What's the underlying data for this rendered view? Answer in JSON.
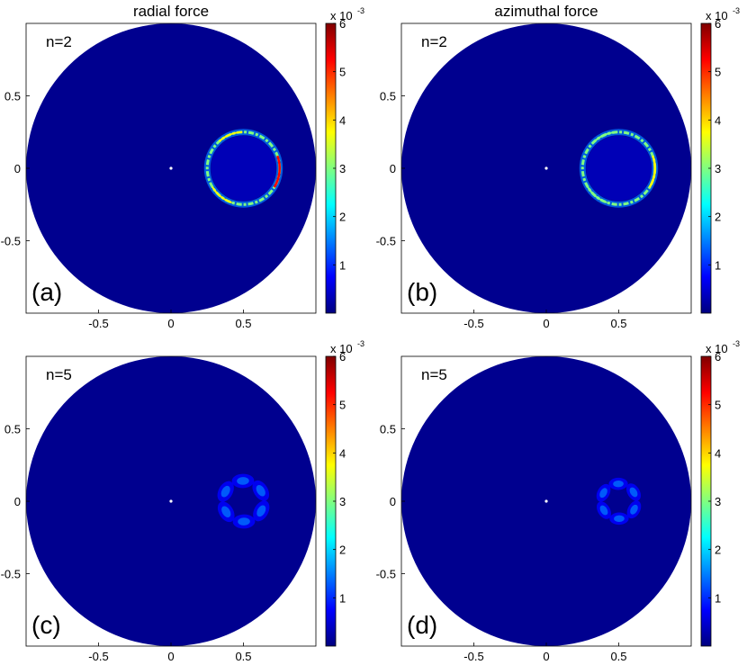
{
  "colors": {
    "field": "#00008f",
    "background": "#ffffff",
    "colormap": [
      "#00007f",
      "#0000ff",
      "#0080ff",
      "#00ffff",
      "#80ff80",
      "#ffff00",
      "#ff8000",
      "#ff0000",
      "#800000"
    ]
  },
  "chart_data": [
    {
      "type": "heatmap",
      "title": "radial force",
      "annotation": "n=2",
      "panel_label": "(a)",
      "xticks": [
        "-0.5",
        "0",
        "0.5"
      ],
      "yticks": [
        "0.5",
        "0",
        "-0.5"
      ],
      "xlim": [
        -1,
        1
      ],
      "ylim": [
        -1,
        1
      ],
      "colorbar": {
        "ticks": [
          "1",
          "2",
          "3",
          "4",
          "5",
          "6"
        ],
        "range": [
          0,
          6
        ],
        "multiplier": "x 10",
        "exponent": "-3"
      },
      "features": [
        {
          "shape": "ring",
          "center": [
            0.5,
            0
          ],
          "radius": 0.25,
          "peak": 5.0
        }
      ]
    },
    {
      "type": "heatmap",
      "title": "azimuthal force",
      "annotation": "n=2",
      "panel_label": "(b)",
      "xticks": [
        "-0.5",
        "0",
        "0.5"
      ],
      "yticks": [
        "0.5",
        "0",
        "-0.5"
      ],
      "xlim": [
        -1,
        1
      ],
      "ylim": [
        -1,
        1
      ],
      "colorbar": {
        "ticks": [
          "1",
          "2",
          "3",
          "4",
          "5",
          "6"
        ],
        "range": [
          0,
          6
        ],
        "multiplier": "x 10",
        "exponent": "-3"
      },
      "features": [
        {
          "shape": "ring",
          "center": [
            0.5,
            0
          ],
          "radius": 0.25,
          "peak": 4.0
        }
      ]
    },
    {
      "type": "heatmap",
      "title": "",
      "annotation": "n=5",
      "panel_label": "(c)",
      "xticks": [
        "-0.5",
        "0",
        "0.5"
      ],
      "yticks": [
        "0.5",
        "0",
        "-0.5"
      ],
      "xlim": [
        -1,
        1
      ],
      "ylim": [
        -1,
        1
      ],
      "colorbar": {
        "ticks": [
          "1",
          "2",
          "3",
          "4",
          "5",
          "6"
        ],
        "range": [
          0,
          6
        ],
        "multiplier": "x 10",
        "exponent": "-3"
      },
      "features": [
        {
          "shape": "lobes",
          "center": [
            0.5,
            0
          ],
          "radius": 0.14,
          "count": 6,
          "peak": 1.5
        }
      ]
    },
    {
      "type": "heatmap",
      "title": "",
      "annotation": "n=5",
      "panel_label": "(d)",
      "xticks": [
        "-0.5",
        "0",
        "0.5"
      ],
      "yticks": [
        "0.5",
        "0",
        "-0.5"
      ],
      "xlim": [
        -1,
        1
      ],
      "ylim": [
        -1,
        1
      ],
      "colorbar": {
        "ticks": [
          "1",
          "2",
          "3",
          "4",
          "5",
          "6"
        ],
        "range": [
          0,
          6
        ],
        "multiplier": "x 10",
        "exponent": "-3"
      },
      "features": [
        {
          "shape": "lobes",
          "center": [
            0.5,
            0
          ],
          "radius": 0.12,
          "count": 6,
          "peak": 1.2
        }
      ]
    }
  ]
}
